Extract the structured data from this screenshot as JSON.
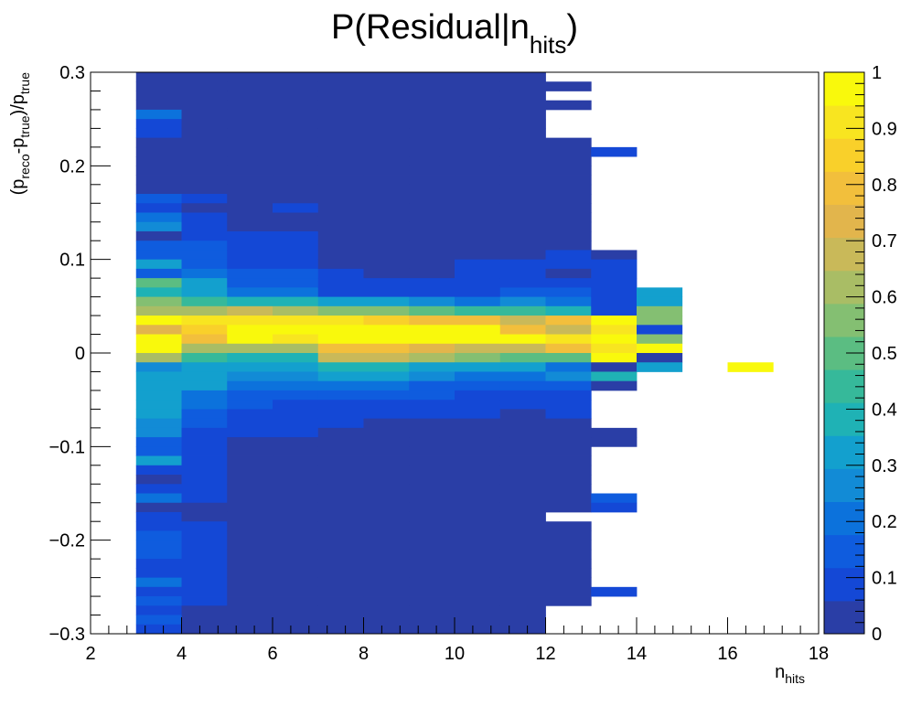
{
  "chart_data": {
    "type": "heatmap",
    "title": {
      "base": "P(Residual|n",
      "sub": "hits",
      "close": ")"
    },
    "xlabel": {
      "base": "n",
      "sub": "hits"
    },
    "ylabel": {
      "p1": "(p",
      "s1": "reco",
      "p2": "-p",
      "s2": "true",
      "p3": ")/p",
      "s3": "true"
    },
    "x_range": [
      2,
      18
    ],
    "y_range": [
      -0.3,
      0.3
    ],
    "x_ticks": [
      2,
      4,
      6,
      8,
      10,
      12,
      14,
      16,
      18
    ],
    "x_tick_labels": [
      "2",
      "4",
      "6",
      "8",
      "10",
      "12",
      "14",
      "16",
      "18"
    ],
    "y_ticks": [
      -0.3,
      -0.2,
      -0.1,
      0,
      0.1,
      0.2,
      0.3
    ],
    "y_tick_labels": [
      "−0.3",
      "−0.2",
      "−0.1",
      "0",
      "0.1",
      "0.2",
      "0.3"
    ],
    "z_range": [
      0,
      1
    ],
    "z_ticks": [
      0,
      0.1,
      0.2,
      0.3,
      0.4,
      0.5,
      0.6,
      0.7,
      0.8,
      0.9,
      1
    ],
    "z_tick_labels": [
      "0",
      "0.1",
      "0.2",
      "0.3",
      "0.4",
      "0.5",
      "0.6",
      "0.7",
      "0.8",
      "0.9",
      "1"
    ],
    "palette": [
      "#2a3ea6",
      "#1448d6",
      "#0f5cde",
      "#0c72dc",
      "#128bd6",
      "#13a0ce",
      "#1fb2b5",
      "#36b99a",
      "#5bbd82",
      "#84bf72",
      "#a9bd65",
      "#c9b959",
      "#e2b54c",
      "#f2bf3c",
      "#f9d02a",
      "#f8e520",
      "#f9f90c"
    ],
    "x_bin_width": 1,
    "y_bin_width": 0.01,
    "y_bins_top_to_bottom_start": 0.3,
    "columns": [
      {
        "x": [
          3,
          4
        ],
        "z": [
          0.05,
          0.05,
          0.0,
          0.0,
          0.18,
          0.08,
          0.08,
          0.0,
          0.0,
          0.0,
          0.0,
          0.0,
          0.0,
          0.15,
          0.1,
          0.18,
          0.25,
          0.05,
          0.15,
          0.15,
          0.35,
          0.12,
          0.5,
          0.4,
          0.55,
          0.6,
          0.95,
          0.75,
          1.0,
          1.0,
          0.6,
          0.25,
          0.3,
          0.35,
          0.3,
          0.3,
          0.3,
          0.25,
          0.28,
          0.15,
          0.12,
          0.35,
          0.1,
          0.05,
          0.1,
          0.18,
          0.05,
          0.1,
          0.1,
          0.15,
          0.12,
          0.15,
          0.1,
          0.08,
          0.18,
          0.1,
          0.12,
          0.1,
          0.12,
          0.1
        ]
      },
      {
        "x": [
          4,
          5
        ],
        "z": [
          0.0,
          0.0,
          0.0,
          0.0,
          0.0,
          0.0,
          0.0,
          0.0,
          0.0,
          0.0,
          0.0,
          0.0,
          0.0,
          0.08,
          0.0,
          0.08,
          0.08,
          0.08,
          0.12,
          0.12,
          0.15,
          0.18,
          0.35,
          0.35,
          0.45,
          0.6,
          0.9,
          0.85,
          0.8,
          0.6,
          0.45,
          0.35,
          0.3,
          0.3,
          0.2,
          0.2,
          0.15,
          0.15,
          0.08,
          0.1,
          0.08,
          0.1,
          0.1,
          0.08,
          0.08,
          0.08,
          0.05,
          0.05,
          0.1,
          0.1,
          0.08,
          0.08,
          0.08,
          0.08,
          0.08,
          0.08,
          0.08,
          0.0,
          0.0,
          0.05
        ]
      },
      {
        "x": [
          5,
          6
        ],
        "z": [
          0.0,
          0.0,
          0.0,
          0.0,
          0.0,
          0.0,
          0.0,
          0.0,
          0.0,
          0.0,
          0.0,
          0.0,
          0.0,
          0.0,
          0.0,
          0.0,
          0.0,
          0.08,
          0.08,
          0.1,
          0.1,
          0.12,
          0.15,
          0.2,
          0.4,
          0.65,
          0.92,
          0.98,
          0.95,
          0.6,
          0.4,
          0.32,
          0.25,
          0.18,
          0.15,
          0.12,
          0.1,
          0.08,
          0.08,
          0.05,
          0.0,
          0.0,
          0.0,
          0.0,
          0.0,
          0.0,
          0.0,
          0.0,
          0.0,
          0.0,
          0.0,
          0.0,
          0.0,
          0.0,
          0.0,
          0.0,
          0.0,
          0.0,
          0.0,
          0.0
        ]
      },
      {
        "x": [
          6,
          7
        ],
        "z": [
          0.0,
          0.0,
          0.0,
          0.0,
          0.0,
          0.0,
          0.0,
          0.0,
          0.0,
          0.0,
          0.0,
          0.0,
          0.0,
          0.0,
          0.08,
          0.0,
          0.0,
          0.08,
          0.08,
          0.08,
          0.08,
          0.12,
          0.15,
          0.2,
          0.38,
          0.6,
          0.92,
          0.98,
          0.9,
          0.6,
          0.4,
          0.3,
          0.25,
          0.18,
          0.15,
          0.1,
          0.1,
          0.08,
          0.08,
          0.0,
          0.0,
          0.0,
          0.0,
          0.0,
          0.0,
          0.0,
          0.0,
          0.0,
          0.0,
          0.0,
          0.0,
          0.0,
          0.0,
          0.0,
          0.0,
          0.0,
          0.0,
          0.0,
          0.0,
          0.0
        ]
      },
      {
        "x": [
          7,
          8
        ],
        "z": [
          0.0,
          0.0,
          0.0,
          0.0,
          0.0,
          0.0,
          0.0,
          0.0,
          0.0,
          0.0,
          0.0,
          0.0,
          0.0,
          0.0,
          0.0,
          0.0,
          0.0,
          0.0,
          0.0,
          0.0,
          0.05,
          0.08,
          0.08,
          0.1,
          0.3,
          0.55,
          0.9,
          0.98,
          0.98,
          0.8,
          0.7,
          0.4,
          0.3,
          0.2,
          0.15,
          0.1,
          0.1,
          0.08,
          0.05,
          0.0,
          0.0,
          0.0,
          0.0,
          0.0,
          0.0,
          0.0,
          0.0,
          0.0,
          0.0,
          0.0,
          0.0,
          0.0,
          0.0,
          0.0,
          0.0,
          0.0,
          0.0,
          0.0,
          0.0,
          0.0
        ]
      },
      {
        "x": [
          8,
          9
        ],
        "z": [
          0.0,
          0.0,
          0.0,
          0.0,
          0.0,
          0.0,
          0.0,
          0.0,
          0.0,
          0.0,
          0.0,
          0.0,
          0.0,
          0.0,
          0.0,
          0.0,
          0.0,
          0.0,
          0.0,
          0.0,
          0.05,
          0.05,
          0.08,
          0.1,
          0.3,
          0.55,
          0.85,
          0.98,
          0.98,
          0.8,
          0.68,
          0.38,
          0.3,
          0.2,
          0.15,
          0.1,
          0.08,
          0.05,
          0.0,
          0.0,
          0.0,
          0.0,
          0.0,
          0.0,
          0.0,
          0.0,
          0.0,
          0.0,
          0.0,
          0.0,
          0.0,
          0.0,
          0.0,
          0.0,
          0.0,
          0.0,
          0.0,
          0.0,
          0.0,
          0.0
        ]
      },
      {
        "x": [
          9,
          10
        ],
        "z": [
          0.0,
          0.0,
          0.0,
          0.0,
          0.0,
          0.0,
          0.0,
          0.0,
          0.0,
          0.0,
          0.0,
          0.0,
          0.0,
          0.0,
          0.0,
          0.0,
          0.0,
          0.0,
          0.0,
          0.0,
          0.05,
          0.05,
          0.08,
          0.1,
          0.25,
          0.5,
          0.8,
          0.98,
          0.98,
          0.75,
          0.6,
          0.32,
          0.25,
          0.15,
          0.12,
          0.1,
          0.08,
          0.05,
          0.0,
          0.0,
          0.0,
          0.0,
          0.0,
          0.0,
          0.0,
          0.0,
          0.0,
          0.0,
          0.0,
          0.0,
          0.0,
          0.0,
          0.0,
          0.0,
          0.0,
          0.0,
          0.0,
          0.0,
          0.0,
          0.0
        ]
      },
      {
        "x": [
          10,
          11
        ],
        "z": [
          0.0,
          0.0,
          0.0,
          0.0,
          0.0,
          0.0,
          0.0,
          0.0,
          0.0,
          0.0,
          0.0,
          0.0,
          0.0,
          0.0,
          0.0,
          0.0,
          0.0,
          0.0,
          0.0,
          0.05,
          0.08,
          0.08,
          0.08,
          0.1,
          0.2,
          0.45,
          0.8,
          0.95,
          0.98,
          0.7,
          0.55,
          0.3,
          0.22,
          0.15,
          0.1,
          0.1,
          0.08,
          0.05,
          0.0,
          0.0,
          0.0,
          0.0,
          0.0,
          0.0,
          0.0,
          0.0,
          0.0,
          0.0,
          0.0,
          0.0,
          0.0,
          0.0,
          0.0,
          0.0,
          0.0,
          0.0,
          0.0,
          0.0,
          0.0,
          0.0
        ]
      },
      {
        "x": [
          11,
          12
        ],
        "z": [
          0.0,
          0.0,
          0.0,
          0.0,
          0.0,
          0.0,
          0.0,
          0.0,
          0.0,
          0.0,
          0.0,
          0.0,
          0.0,
          0.0,
          0.0,
          0.0,
          0.0,
          0.0,
          0.0,
          0.0,
          0.08,
          0.08,
          0.08,
          0.12,
          0.25,
          0.45,
          0.7,
          0.8,
          0.95,
          0.65,
          0.5,
          0.3,
          0.22,
          0.12,
          0.1,
          0.08,
          0.05,
          0.0,
          0.0,
          0.0,
          0.0,
          0.0,
          0.0,
          0.0,
          0.0,
          0.0,
          0.0,
          0.0,
          0.0,
          0.0,
          0.0,
          0.0,
          0.0,
          0.0,
          0.0,
          0.0,
          0.0,
          0.0,
          0.0,
          0.0
        ]
      },
      {
        "x": [
          12,
          13
        ],
        "z": [
          null,
          0.0,
          null,
          0.0,
          null,
          null,
          null,
          0.0,
          0.0,
          0.0,
          0.0,
          0.0,
          0.0,
          0.0,
          0.0,
          0.0,
          0.0,
          0.0,
          0.0,
          0.08,
          0.08,
          0.0,
          0.08,
          0.15,
          0.2,
          0.4,
          0.8,
          0.7,
          0.9,
          0.8,
          0.5,
          0.2,
          0.25,
          0.15,
          0.08,
          0.08,
          0.08,
          0.0,
          0.0,
          0.0,
          0.0,
          0.0,
          0.0,
          0.0,
          0.0,
          0.0,
          0.0,
          null,
          0.0,
          0.0,
          0.0,
          0.0,
          0.0,
          0.0,
          0.0,
          0.0,
          0.0,
          null,
          null,
          null
        ]
      },
      {
        "x": [
          13,
          14
        ],
        "z": [
          null,
          null,
          null,
          null,
          null,
          null,
          null,
          null,
          0.08,
          null,
          null,
          null,
          null,
          null,
          null,
          null,
          null,
          null,
          null,
          0.05,
          0.08,
          0.08,
          0.1,
          0.08,
          0.1,
          0.1,
          1.0,
          0.9,
          0.95,
          0.92,
          1.0,
          0.0,
          0.4,
          0.05,
          null,
          null,
          null,
          null,
          0.05,
          0.05,
          null,
          null,
          null,
          null,
          null,
          0.15,
          0.08,
          null,
          null,
          null,
          null,
          null,
          null,
          null,
          null,
          0.08,
          null,
          null,
          null,
          null
        ]
      },
      {
        "x": [
          14,
          15
        ],
        "z": [
          null,
          null,
          null,
          null,
          null,
          null,
          null,
          null,
          null,
          null,
          null,
          null,
          null,
          null,
          null,
          null,
          null,
          null,
          null,
          null,
          null,
          null,
          null,
          0.3,
          0.3,
          0.55,
          0.55,
          0.1,
          0.55,
          0.98,
          0.0,
          0.3,
          null,
          null,
          null,
          null,
          null,
          null,
          null,
          null,
          null,
          null,
          null,
          null,
          null,
          null,
          null,
          null,
          null,
          null,
          null,
          null,
          null,
          null,
          null,
          null,
          null,
          null,
          null,
          null
        ]
      },
      {
        "x": [
          16,
          17
        ],
        "z": [
          null,
          null,
          null,
          null,
          null,
          null,
          null,
          null,
          null,
          null,
          null,
          null,
          null,
          null,
          null,
          null,
          null,
          null,
          null,
          null,
          null,
          null,
          null,
          null,
          null,
          null,
          null,
          null,
          null,
          null,
          null,
          1.0,
          null,
          null,
          null,
          null,
          null,
          null,
          null,
          null,
          null,
          null,
          null,
          null,
          null,
          null,
          null,
          null,
          null,
          null,
          null,
          null,
          null,
          null,
          null,
          null,
          null,
          null,
          null,
          null
        ]
      }
    ]
  }
}
